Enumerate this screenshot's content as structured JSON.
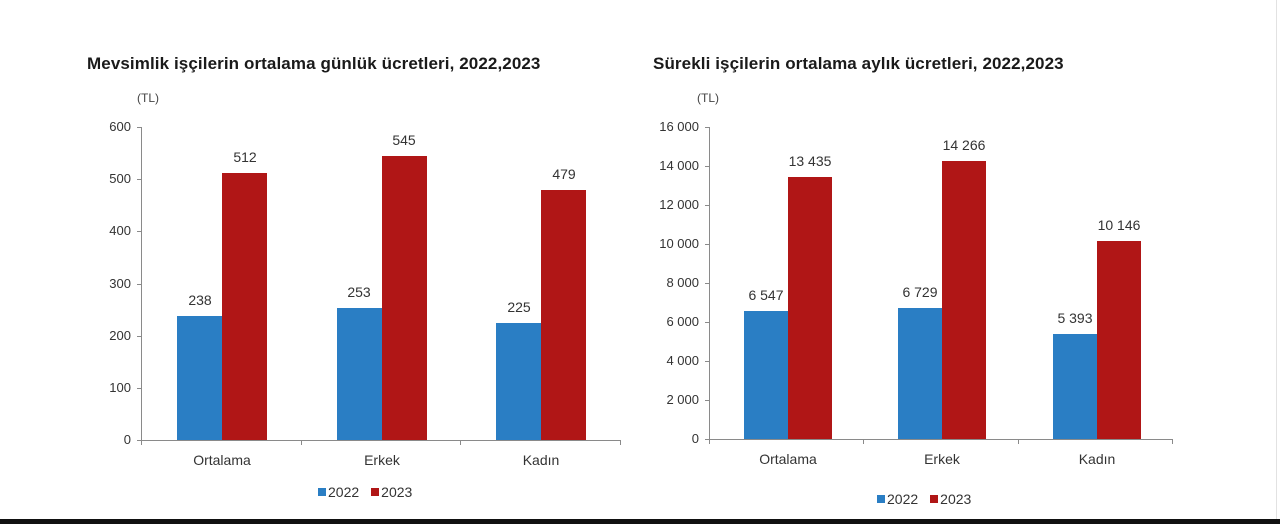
{
  "colors": {
    "s2022": "#2a7ec4",
    "s2023": "#b01616"
  },
  "legend": [
    "2022",
    "2023"
  ],
  "charts": [
    {
      "title": "Mevsimlik işçilerin ortalama günlük ücretleri, 2022,2023",
      "unit": "(TL)",
      "y_ticks": [
        "0",
        "100",
        "200",
        "300",
        "400",
        "500",
        "600"
      ],
      "categories": [
        "Ortalama",
        "Erkek",
        "Kadın"
      ],
      "values_2022": [
        "238",
        "253",
        "225"
      ],
      "values_2023": [
        "512",
        "545",
        "479"
      ]
    },
    {
      "title": "Sürekli işçilerin ortalama aylık ücretleri, 2022,2023",
      "unit": "(TL)",
      "y_ticks": [
        "0",
        "2 000",
        "4 000",
        "6 000",
        "8 000",
        "10 000",
        "12 000",
        "14 000",
        "16 000"
      ],
      "categories": [
        "Ortalama",
        "Erkek",
        "Kadın"
      ],
      "values_2022": [
        "6 547",
        "6 729",
        "5 393"
      ],
      "values_2023": [
        "13 435",
        "14 266",
        "10 146"
      ]
    }
  ],
  "chart_data": [
    {
      "type": "bar",
      "title": "Mevsimlik işçilerin ortalama günlük ücretleri, 2022,2023",
      "xlabel": "",
      "ylabel": "(TL)",
      "categories": [
        "Ortalama",
        "Erkek",
        "Kadın"
      ],
      "series": [
        {
          "name": "2022",
          "values": [
            238,
            253,
            225
          ],
          "color": "#2a7ec4"
        },
        {
          "name": "2023",
          "values": [
            512,
            545,
            479
          ],
          "color": "#b01616"
        }
      ],
      "ylim": [
        0,
        600
      ],
      "y_ticks": [
        0,
        100,
        200,
        300,
        400,
        500,
        600
      ],
      "grid": false,
      "legend_position": "bottom",
      "data_labels": true
    },
    {
      "type": "bar",
      "title": "Sürekli işçilerin ortalama aylık ücretleri, 2022,2023",
      "xlabel": "",
      "ylabel": "(TL)",
      "categories": [
        "Ortalama",
        "Erkek",
        "Kadın"
      ],
      "series": [
        {
          "name": "2022",
          "values": [
            6547,
            6729,
            5393
          ],
          "color": "#2a7ec4"
        },
        {
          "name": "2023",
          "values": [
            13435,
            14266,
            10146
          ],
          "color": "#b01616"
        }
      ],
      "ylim": [
        0,
        16000
      ],
      "y_ticks": [
        0,
        2000,
        4000,
        6000,
        8000,
        10000,
        12000,
        14000,
        16000
      ],
      "grid": false,
      "legend_position": "bottom",
      "data_labels": true
    }
  ]
}
